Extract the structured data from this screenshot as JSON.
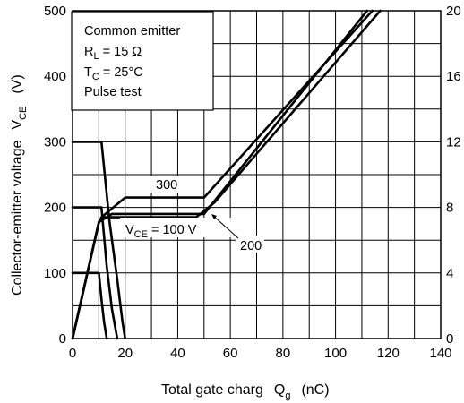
{
  "chart_data": {
    "type": "line",
    "title": "",
    "xlabel": {
      "main": "Total gate charg",
      "symbol": "Q",
      "symbol_sub": "g",
      "unit": "(nC)"
    },
    "ylabel": {
      "main": "Collector-emitter voltage",
      "symbol": "V",
      "symbol_sub": "CE",
      "unit": "(V)"
    },
    "xlim": [
      0,
      140
    ],
    "ylim": [
      0,
      500
    ],
    "y2lim": [
      0,
      20
    ],
    "xticks": [
      0,
      20,
      40,
      60,
      80,
      100,
      120,
      140
    ],
    "yticks": [
      0,
      100,
      200,
      300,
      400,
      500
    ],
    "y2ticks": [
      0,
      4,
      8,
      12,
      16,
      20
    ],
    "grid": true,
    "conditions": {
      "line1": "Common emitter",
      "rl_symbol": "R",
      "rl_sub": "L",
      "rl_value": "= 15 Ω",
      "tc_symbol": "T",
      "tc_sub": "C",
      "tc_value": "= 25°C",
      "line4": "Pulse test"
    },
    "annotations": {
      "v300": "300",
      "v200": "200",
      "v100_symbol": "V",
      "v100_sub": "CE",
      "v100_value": "= 100 V"
    },
    "series": [
      {
        "axis": "y",
        "values": [
          [
            0,
            300
          ],
          [
            11,
            300
          ],
          [
            14,
            180
          ],
          [
            17,
            90
          ],
          [
            19,
            25
          ],
          [
            20,
            0
          ]
        ]
      },
      {
        "axis": "y",
        "values": [
          [
            0,
            200
          ],
          [
            11,
            200
          ],
          [
            13,
            110
          ],
          [
            15,
            45
          ],
          [
            17,
            0
          ]
        ]
      },
      {
        "axis": "y",
        "values": [
          [
            0,
            100
          ],
          [
            10,
            100
          ],
          [
            11,
            60
          ],
          [
            12,
            25
          ],
          [
            13,
            0
          ]
        ]
      },
      {
        "axis": "y2",
        "values": [
          [
            0,
            0
          ],
          [
            10,
            7.1
          ],
          [
            11,
            7.4
          ],
          [
            20,
            8.6
          ],
          [
            50,
            8.6
          ],
          [
            114,
            20
          ]
        ]
      },
      {
        "axis": "y2",
        "values": [
          [
            0,
            0
          ],
          [
            10,
            7.1
          ],
          [
            12,
            7.4
          ],
          [
            47,
            7.4
          ],
          [
            54,
            8.3
          ],
          [
            117,
            20
          ]
        ]
      },
      {
        "axis": "y2",
        "values": [
          [
            0,
            0
          ],
          [
            10,
            7.1
          ],
          [
            15,
            7.6
          ],
          [
            50,
            7.6
          ],
          [
            112,
            20
          ]
        ]
      }
    ]
  }
}
